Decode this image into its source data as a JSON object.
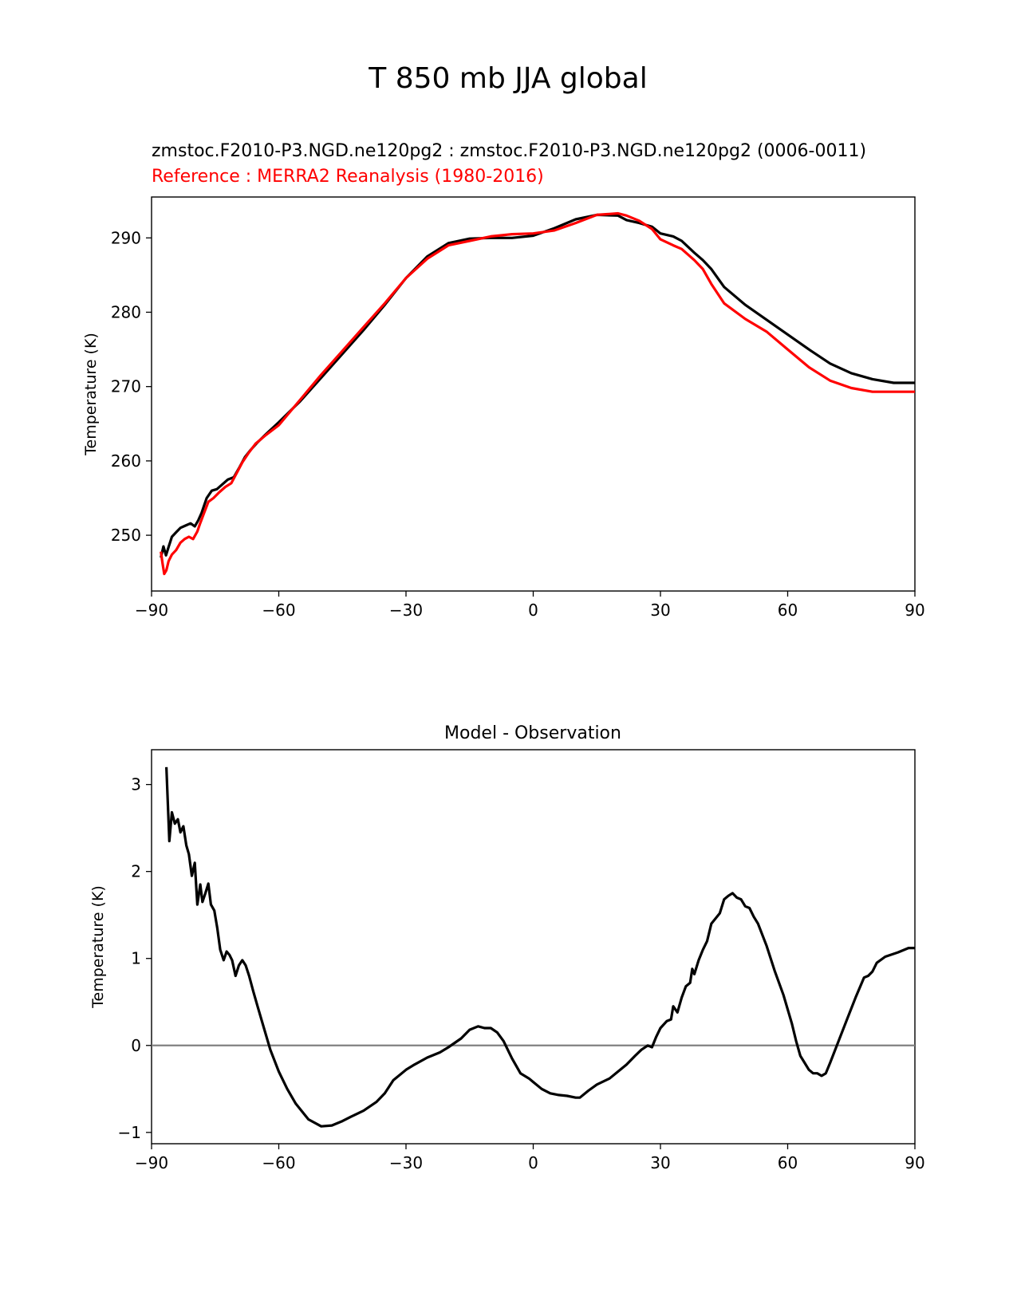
{
  "figure_title": "T 850 mb JJA global",
  "chart_data": [
    {
      "type": "line",
      "title_test": "zmstoc.F2010-P3.NGD.ne120pg2 : zmstoc.F2010-P3.NGD.ne120pg2 (0006-0011)",
      "title_ref": "Reference : MERRA2 Reanalysis (1980-2016)",
      "xlabel": "",
      "ylabel": "Temperature (K)",
      "xlim": [
        -90,
        90
      ],
      "ylim": [
        242.5,
        295.5
      ],
      "xticks": [
        -90,
        -60,
        -30,
        0,
        30,
        60,
        90
      ],
      "xtick_labels": [
        "−90",
        "−60",
        "−30",
        "0",
        "30",
        "60",
        "90"
      ],
      "yticks": [
        250,
        260,
        270,
        280,
        290
      ],
      "ytick_labels": [
        "250",
        "260",
        "270",
        "280",
        "290"
      ],
      "grid": false,
      "series": [
        {
          "name": "zmstoc.F2010-P3.NGD.ne120pg2",
          "color": "#000000",
          "x": [
            -87.8,
            -87.2,
            -86.6,
            -86.0,
            -85.2,
            -84.2,
            -83.2,
            -82.0,
            -80.8,
            -79.8,
            -79.0,
            -78.2,
            -77.0,
            -75.8,
            -74.6,
            -73.4,
            -72.0,
            -70.6,
            -69.4,
            -68.0,
            -66.6,
            -65.0,
            -63.0,
            -60.0,
            -55.0,
            -50.0,
            -45.0,
            -40.0,
            -35.0,
            -30.0,
            -25.0,
            -20.0,
            -15.0,
            -10.0,
            -5.0,
            0.0,
            5.0,
            10.0,
            15.0,
            20.0,
            22.0,
            25.0,
            28.0,
            30.0,
            33.0,
            35.0,
            38.0,
            40.0,
            42.0,
            45.0,
            50.0,
            55.0,
            60.0,
            65.0,
            70.0,
            75.0,
            80.0,
            85.0,
            90.0
          ],
          "y": [
            247.0,
            248.5,
            247.3,
            248.4,
            249.8,
            250.4,
            251.0,
            251.3,
            251.6,
            251.2,
            252.0,
            253.0,
            255.0,
            256.0,
            256.2,
            256.8,
            257.5,
            257.8,
            259.0,
            260.5,
            261.5,
            262.5,
            263.6,
            265.2,
            268.0,
            271.2,
            274.4,
            277.6,
            281.0,
            284.6,
            287.5,
            289.3,
            289.9,
            290.0,
            290.0,
            290.3,
            291.3,
            292.5,
            293.1,
            293.0,
            292.4,
            292.0,
            291.5,
            290.6,
            290.2,
            289.6,
            288.0,
            287.0,
            285.8,
            283.4,
            281.0,
            279.0,
            277.0,
            275.0,
            273.1,
            271.8,
            271.0,
            270.5,
            270.5
          ]
        },
        {
          "name": "Reference : MERRA2 Reanalysis (1980-2016)",
          "color": "#ff0000",
          "x": [
            -87.8,
            -87.4,
            -87.0,
            -86.5,
            -86.0,
            -85.2,
            -84.2,
            -83.2,
            -82.2,
            -81.2,
            -80.2,
            -79.2,
            -78.6,
            -77.6,
            -76.6,
            -75.4,
            -74.0,
            -72.6,
            -71.2,
            -69.8,
            -68.6,
            -67.2,
            -65.5,
            -63.0,
            -60.0,
            -55.0,
            -50.0,
            -45.0,
            -40.0,
            -35.0,
            -30.0,
            -25.0,
            -20.0,
            -15.0,
            -10.0,
            -5.0,
            0.0,
            5.0,
            10.0,
            15.0,
            20.0,
            22.0,
            25.0,
            28.0,
            30.0,
            33.0,
            35.0,
            38.0,
            40.0,
            42.0,
            45.0,
            50.0,
            55.0,
            60.0,
            65.0,
            70.0,
            75.0,
            80.0,
            85.0,
            90.0
          ],
          "y": [
            247.8,
            246.2,
            244.8,
            245.3,
            246.5,
            247.4,
            248.0,
            249.0,
            249.5,
            249.8,
            249.5,
            250.5,
            251.5,
            253.0,
            254.5,
            255.0,
            255.8,
            256.5,
            257.0,
            258.5,
            259.8,
            261.0,
            262.3,
            263.5,
            264.8,
            268.2,
            271.6,
            274.8,
            278.0,
            281.2,
            284.6,
            287.2,
            289.0,
            289.6,
            290.2,
            290.5,
            290.6,
            291.0,
            292.0,
            293.1,
            293.3,
            293.0,
            292.3,
            291.2,
            289.8,
            289.0,
            288.5,
            287.0,
            285.8,
            283.8,
            281.2,
            279.1,
            277.4,
            275.0,
            272.6,
            270.8,
            269.8,
            269.3,
            269.3,
            269.3
          ]
        }
      ]
    },
    {
      "type": "line",
      "title": "Model - Observation",
      "xlabel": "",
      "ylabel": "Temperature (K)",
      "xlim": [
        -90,
        90
      ],
      "ylim": [
        -1.13,
        3.4
      ],
      "xticks": [
        -90,
        -60,
        -30,
        0,
        30,
        60,
        90
      ],
      "xtick_labels": [
        "−90",
        "−60",
        "−30",
        "0",
        "30",
        "60",
        "90"
      ],
      "yticks": [
        -1,
        0,
        1,
        2,
        3
      ],
      "ytick_labels": [
        "−1",
        "0",
        "1",
        "2",
        "3"
      ],
      "zero_line": {
        "value": 0,
        "color": "#808080"
      },
      "grid": false,
      "series": [
        {
          "name": "Model - Observation",
          "color": "#000000",
          "x": [
            -86.5,
            -85.8,
            -85.2,
            -84.5,
            -83.8,
            -83.2,
            -82.5,
            -81.8,
            -81.2,
            -80.5,
            -79.8,
            -79.2,
            -78.5,
            -78.0,
            -77.3,
            -76.6,
            -76.0,
            -75.2,
            -74.5,
            -73.8,
            -73.0,
            -72.3,
            -71.6,
            -71.0,
            -70.2,
            -69.4,
            -68.6,
            -67.8,
            -67.0,
            -66.0,
            -65.0,
            -63.5,
            -62.0,
            -60.0,
            -58.0,
            -56.0,
            -53.0,
            -50.0,
            -47.5,
            -45.0,
            -43.0,
            -40.0,
            -37.0,
            -35.0,
            -33.0,
            -30.0,
            -28.0,
            -25.0,
            -22.0,
            -20.0,
            -17.0,
            -15.0,
            -13.0,
            -11.5,
            -10.0,
            -8.5,
            -7.0,
            -5.0,
            -3.0,
            -1.0,
            0.0,
            2.0,
            4.0,
            6.0,
            8.0,
            10.0,
            11.0,
            13.0,
            15.0,
            18.0,
            20.0,
            22.0,
            24.0,
            25.5,
            27.0,
            28.0,
            29.0,
            30.0,
            31.5,
            32.5,
            33.0,
            34.0,
            35.0,
            36.0,
            37.0,
            37.5,
            38.0,
            39.0,
            40.0,
            41.0,
            42.0,
            44.0,
            45.0,
            46.0,
            47.0,
            48.0,
            49.0,
            50.0,
            51.0,
            52.0,
            53.0,
            55.0,
            57.0,
            59.0,
            61.0,
            62.0,
            63.0,
            64.0,
            65.0,
            66.0,
            67.0,
            68.0,
            69.0,
            70.0,
            72.0,
            74.0,
            76.0,
            78.0,
            79.0,
            80.0,
            81.0,
            83.0,
            86.0,
            88.5,
            90.0
          ],
          "y": [
            3.2,
            2.35,
            2.68,
            2.55,
            2.6,
            2.45,
            2.52,
            2.3,
            2.2,
            1.95,
            2.1,
            1.62,
            1.85,
            1.65,
            1.75,
            1.86,
            1.62,
            1.55,
            1.35,
            1.1,
            0.98,
            1.08,
            1.04,
            0.98,
            0.8,
            0.92,
            0.98,
            0.92,
            0.8,
            0.62,
            0.45,
            0.2,
            -0.05,
            -0.3,
            -0.5,
            -0.67,
            -0.85,
            -0.93,
            -0.92,
            -0.87,
            -0.82,
            -0.75,
            -0.65,
            -0.55,
            -0.4,
            -0.28,
            -0.22,
            -0.14,
            -0.08,
            -0.02,
            0.08,
            0.18,
            0.22,
            0.2,
            0.2,
            0.15,
            0.05,
            -0.15,
            -0.32,
            -0.38,
            -0.42,
            -0.5,
            -0.55,
            -0.57,
            -0.58,
            -0.6,
            -0.6,
            -0.52,
            -0.45,
            -0.38,
            -0.3,
            -0.22,
            -0.12,
            -0.05,
            0.0,
            -0.02,
            0.1,
            0.2,
            0.28,
            0.3,
            0.45,
            0.38,
            0.55,
            0.68,
            0.72,
            0.88,
            0.82,
            0.98,
            1.1,
            1.2,
            1.4,
            1.52,
            1.68,
            1.72,
            1.75,
            1.7,
            1.68,
            1.6,
            1.58,
            1.48,
            1.4,
            1.15,
            0.85,
            0.58,
            0.25,
            0.05,
            -0.12,
            -0.2,
            -0.28,
            -0.32,
            -0.32,
            -0.35,
            -0.32,
            -0.2,
            0.05,
            0.3,
            0.55,
            0.78,
            0.8,
            0.85,
            0.95,
            1.02,
            1.07,
            1.12,
            1.12
          ]
        }
      ]
    }
  ]
}
